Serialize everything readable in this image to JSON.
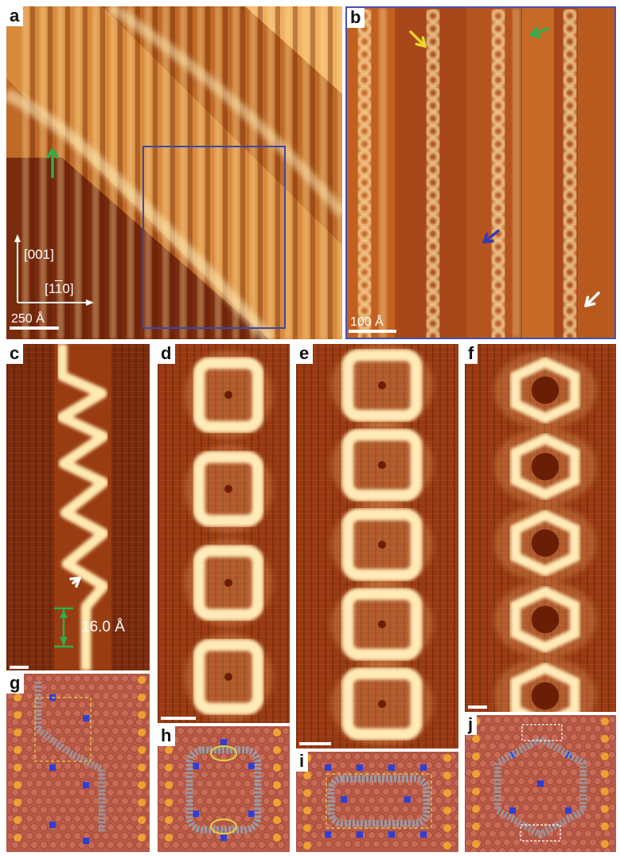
{
  "panels": {
    "a": {
      "label": "a",
      "scale": "250 Å",
      "axis_vertical": "[001]",
      "axis_horizontal_pre": "[1",
      "axis_horizontal_bar": "1",
      "axis_horizontal_post": "0]"
    },
    "b": {
      "label": "b",
      "scale": "100 Å"
    },
    "c": {
      "label": "c",
      "measurement": "16.0 Å"
    },
    "d": {
      "label": "d"
    },
    "e": {
      "label": "e"
    },
    "f": {
      "label": "f"
    },
    "g": {
      "label": "g"
    },
    "h": {
      "label": "h"
    },
    "i": {
      "label": "i"
    },
    "j": {
      "label": "j"
    }
  },
  "colors": {
    "dark_substrate": "#7a2a0c",
    "mid_substrate": "#b5561c",
    "bright_feature": "#ffe7a8",
    "terrace_light": "#e49a48",
    "box_outline": "#3b49a8",
    "green_arrow": "#2fae4a",
    "yellow_arrow": "#e8d62a",
    "blue_arrow": "#3a3ab0",
    "white_arrow": "#ffffff",
    "model_bg": "#b85a47",
    "model_atom": "#c96a55",
    "model_orange": "#f0a030",
    "model_blue": "#2f3fd6",
    "model_gray": "#9a9aa4"
  }
}
